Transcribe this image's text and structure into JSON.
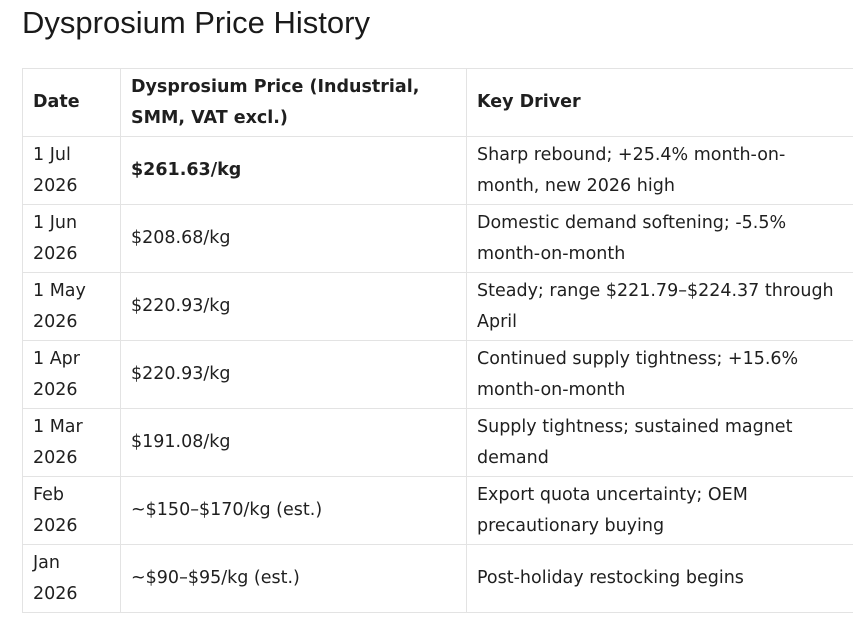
{
  "title": "Dysprosium Price History",
  "table": {
    "headers": [
      "Date",
      "Dysprosium Price (Industrial, SMM, VAT excl.)",
      "Key Driver"
    ],
    "rows": [
      {
        "date": "1 Jul 2026",
        "price": "$261.63/kg",
        "driver": "Sharp rebound; +25.4% month-on-month, new 2026 high"
      },
      {
        "date": "1 Jun 2026",
        "price": "$208.68/kg",
        "driver": "Domestic demand softening; -5.5% month-on-month"
      },
      {
        "date": "1 May 2026",
        "price": "$220.93/kg",
        "driver": "Steady; range $221.79–$224.37 through April"
      },
      {
        "date": "1 Apr 2026",
        "price": "$220.93/kg",
        "driver": "Continued supply tightness; +15.6% month-on-month"
      },
      {
        "date": "1 Mar 2026",
        "price": "$191.08/kg",
        "driver": "Supply tightness; sustained magnet demand"
      },
      {
        "date": "Feb 2026",
        "price": "~$150–$170/kg (est.)",
        "driver": "Export quota uncertainty; OEM precautionary buying"
      },
      {
        "date": "Jan 2026",
        "price": "~$90–$95/kg (est.)",
        "driver": "Post-holiday restocking begins"
      }
    ]
  }
}
